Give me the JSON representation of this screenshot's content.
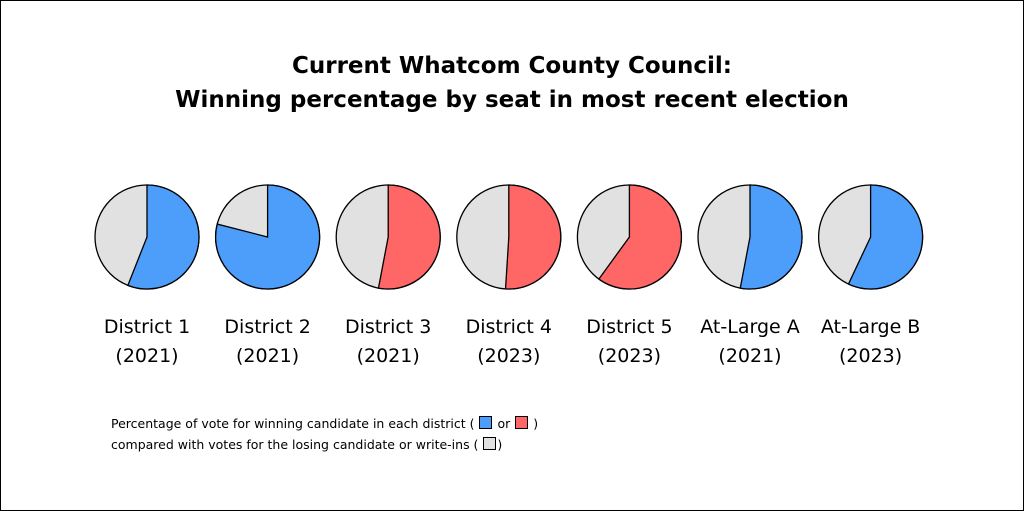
{
  "title_lines": [
    "Current Whatcom County Council:",
    "Winning percentage by seat in most recent election"
  ],
  "colors": {
    "winner_blue": "#4d9dfa",
    "winner_red": "#ff6666",
    "other_gray": "#e1e1e1",
    "outline": "#000000"
  },
  "chart_data": {
    "type": "pie",
    "title": "Current Whatcom County Council: Winning percentage by seat in most recent election",
    "pies": [
      {
        "seat": "District 1",
        "year": "(2021)",
        "winner_pct": 56,
        "winner_color": "blue"
      },
      {
        "seat": "District 2",
        "year": "(2021)",
        "winner_pct": 79,
        "winner_color": "blue"
      },
      {
        "seat": "District 3",
        "year": "(2021)",
        "winner_pct": 53,
        "winner_color": "red"
      },
      {
        "seat": "District 4",
        "year": "(2023)",
        "winner_pct": 51,
        "winner_color": "red"
      },
      {
        "seat": "District 5",
        "year": "(2023)",
        "winner_pct": 60,
        "winner_color": "red"
      },
      {
        "seat": "At-Large A",
        "year": "(2021)",
        "winner_pct": 53,
        "winner_color": "blue"
      },
      {
        "seat": "At-Large B",
        "year": "(2023)",
        "winner_pct": 57,
        "winner_color": "blue"
      }
    ]
  },
  "note": {
    "line1_before": "Percentage of vote for winning candidate in each district (",
    "line1_or": "or",
    "line1_after": ")",
    "line2_before": "compared with votes for the losing candidate or write-ins (",
    "line2_after": ")"
  }
}
